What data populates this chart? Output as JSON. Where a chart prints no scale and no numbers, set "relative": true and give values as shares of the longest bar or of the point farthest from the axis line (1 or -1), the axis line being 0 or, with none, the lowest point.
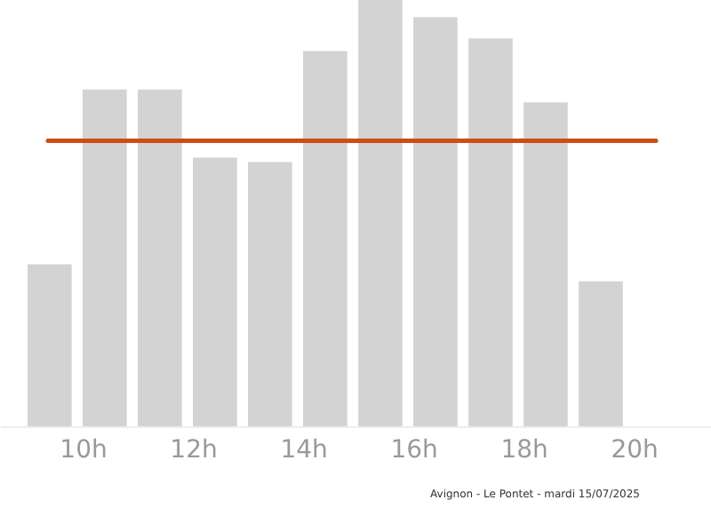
{
  "chart_data": {
    "type": "bar",
    "relative": true,
    "x": [
      9.4,
      10.4,
      11.4,
      12.4,
      13.4,
      14.4,
      15.4,
      16.4,
      17.4,
      18.4,
      19.4
    ],
    "values": [
      0.38,
      0.79,
      0.79,
      0.63,
      0.62,
      0.88,
      1,
      0.96,
      0.91,
      0.76,
      0.34
    ],
    "color": "#d3d3d3",
    "xlim": [
      8.5,
      21.4
    ],
    "xticks": [
      {
        "value": 10,
        "label": "10h"
      },
      {
        "value": 12,
        "label": "12h"
      },
      {
        "value": 14,
        "label": "14h"
      },
      {
        "value": 16,
        "label": "16h"
      },
      {
        "value": 18,
        "label": "18h"
      },
      {
        "value": 20,
        "label": "20h"
      }
    ],
    "ref_lines": [
      {
        "axis": "y",
        "value": 0.67,
        "color": "#cc4e12"
      }
    ],
    "annotations": [
      "Avignon - Le Pontet - mardi 15/07/2025"
    ],
    "grid": false
  }
}
